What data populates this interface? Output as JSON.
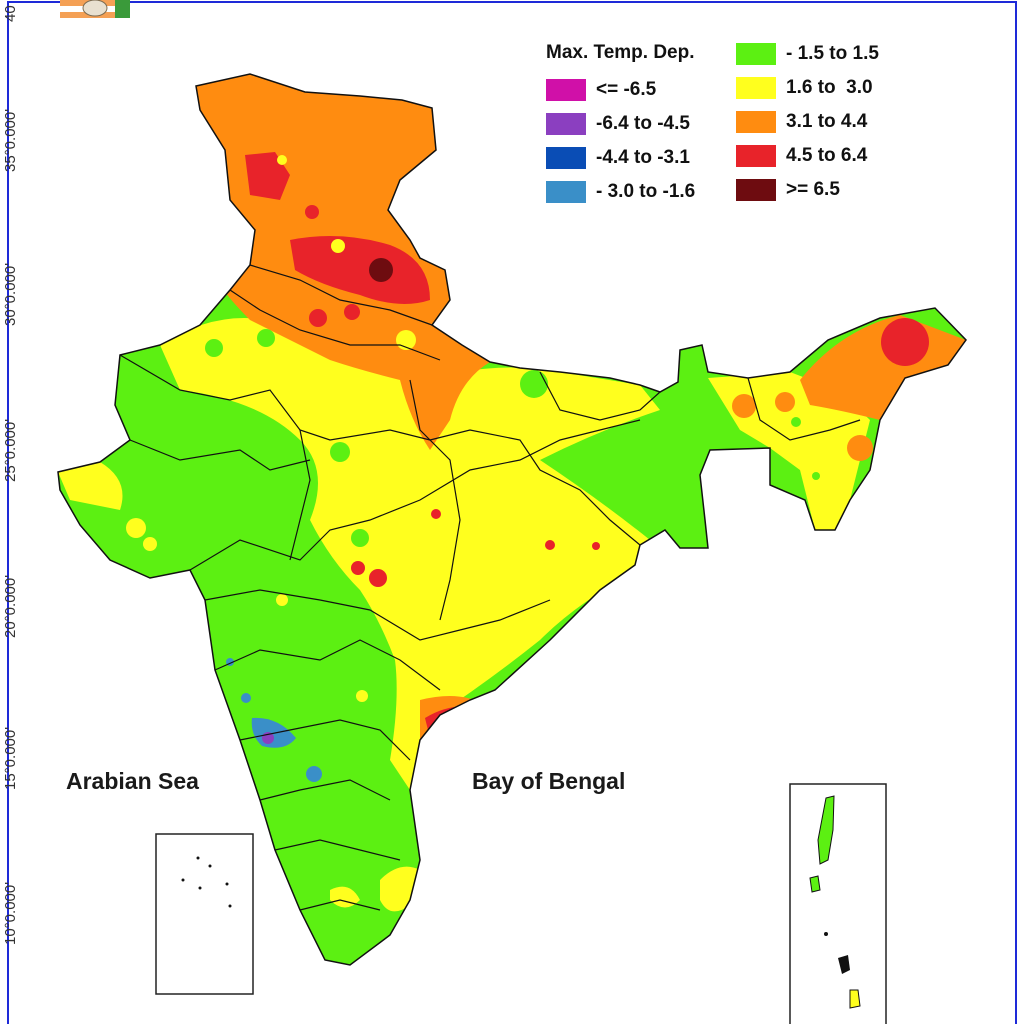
{
  "legend": {
    "title": "Max. Temp. Dep.",
    "items": [
      {
        "label": "<= -6.5",
        "color": "#d010a8"
      },
      {
        "label": "-6.4 to -4.5",
        "color": "#8b3fc0"
      },
      {
        "label": "-4.4 to -3.1",
        "color": "#0a4db5"
      },
      {
        "label": "- 3.0 to -1.6",
        "color": "#3a8fc8"
      },
      {
        "label": "- 1.5 to 1.5",
        "color": "#5cf012"
      },
      {
        "label": "1.6 to  3.0",
        "color": "#ffff1e"
      },
      {
        "label": "3.1 to 4.4",
        "color": "#ff8c10"
      },
      {
        "label": "4.5 to 6.4",
        "color": "#e8232a"
      },
      {
        "label": ">= 6.5",
        "color": "#6e0c10"
      }
    ]
  },
  "latitude_labels": [
    "40",
    "35°0.000'",
    "30°0.000'",
    "25°0.000'",
    "20°0.000'",
    "15°0.000'",
    "10°0.000'"
  ],
  "sea_labels": {
    "arabian": "Arabian Sea",
    "bengal": "Bay of Bengal"
  },
  "colors": {
    "green": "#5cf012",
    "yellow": "#ffff1e",
    "orange": "#ff8c10",
    "red": "#e8232a",
    "darkred": "#6e0c10",
    "blue": "#3a8fc8",
    "darkblue": "#0a4db5",
    "frame": "#1e2ad8"
  }
}
